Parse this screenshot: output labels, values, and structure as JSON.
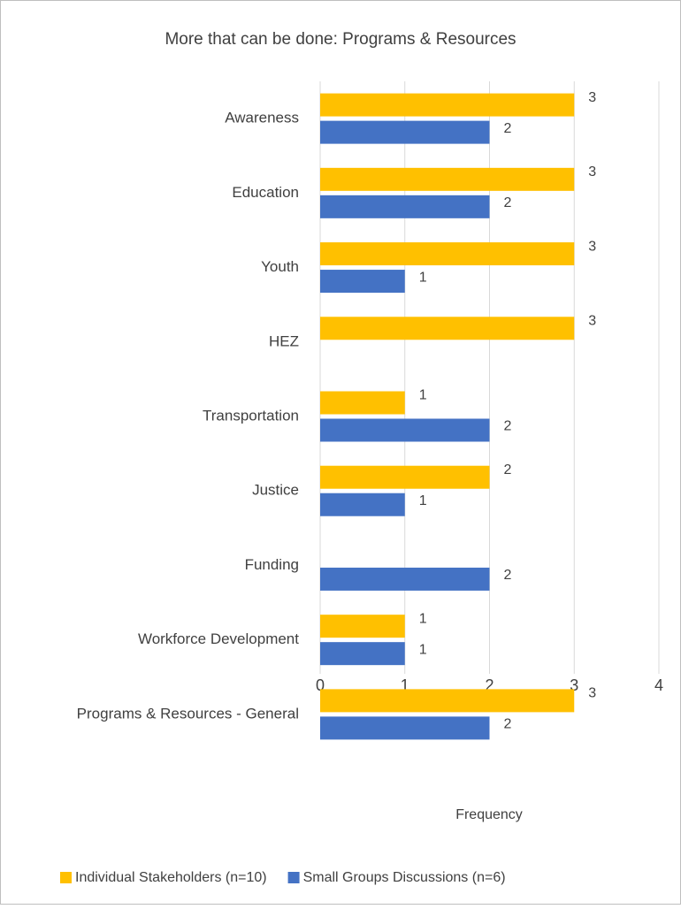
{
  "chart_data": {
    "type": "barh",
    "title": "More that can be done:  Programs & Resources",
    "xlabel": "Frequency",
    "categories": [
      "Awareness",
      "Education",
      "Youth",
      "HEZ",
      "Transportation",
      "Justice",
      "Funding",
      "Workforce Development",
      "Programs & Resources - General"
    ],
    "series": [
      {
        "name": "Individual Stakeholders (n=10)",
        "color": "#ffc000",
        "values": [
          3,
          3,
          3,
          3,
          1,
          2,
          null,
          1,
          3
        ]
      },
      {
        "name": "Small Groups Discussions (n=6)",
        "color": "#4472c4",
        "values": [
          2,
          2,
          1,
          null,
          2,
          1,
          2,
          1,
          2
        ]
      }
    ],
    "xlim": [
      0,
      4
    ],
    "xticks": [
      0,
      1,
      2,
      3,
      4
    ],
    "grid": true,
    "legend": "bottom"
  }
}
